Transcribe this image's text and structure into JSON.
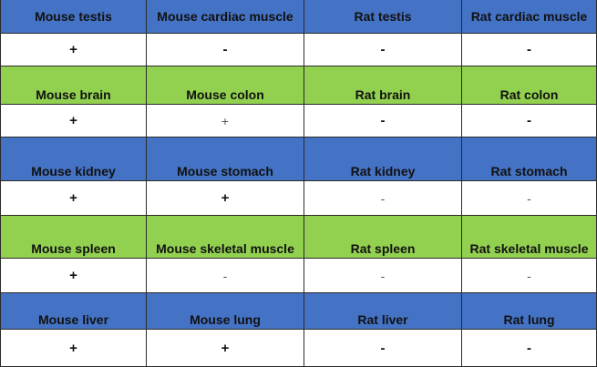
{
  "colors": {
    "blue_header": "#4472c4",
    "green_header": "#92d050",
    "value_row": "#ffffff"
  },
  "table": {
    "rows": [
      {
        "header_color": "blue",
        "headers": [
          "Mouse testis",
          "Mouse cardiac muscle",
          "Rat testis",
          "Rat cardiac muscle"
        ],
        "values": [
          "+",
          "-",
          "-",
          "-"
        ]
      },
      {
        "header_color": "green",
        "headers": [
          "Mouse brain",
          "Mouse colon",
          "Rat brain",
          "Rat colon"
        ],
        "values": [
          "+",
          "+",
          "-",
          "-"
        ]
      },
      {
        "header_color": "blue",
        "headers": [
          "Mouse kidney",
          "Mouse stomach",
          "Rat kidney",
          "Rat stomach"
        ],
        "values": [
          "+",
          "+",
          "-",
          "-"
        ]
      },
      {
        "header_color": "green",
        "headers": [
          "Mouse spleen",
          "Mouse skeletal muscle",
          "Rat spleen",
          "Rat skeletal muscle"
        ],
        "values": [
          "+",
          "-",
          "-",
          "-"
        ]
      },
      {
        "header_color": "blue",
        "headers": [
          "Mouse liver",
          "Mouse lung",
          "Rat liver",
          "Rat lung"
        ],
        "values": [
          "+",
          "+",
          "-",
          "-"
        ]
      }
    ]
  }
}
